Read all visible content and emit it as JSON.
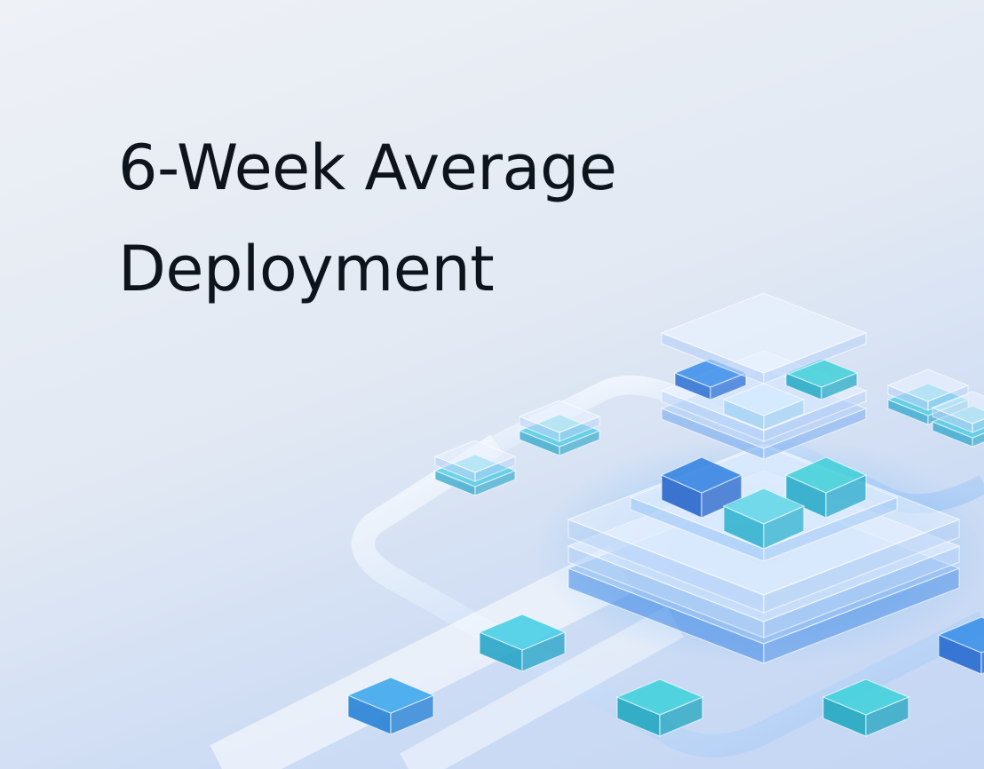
{
  "title": {
    "lines": [
      "6-Week Average",
      "Deployment"
    ]
  }
}
